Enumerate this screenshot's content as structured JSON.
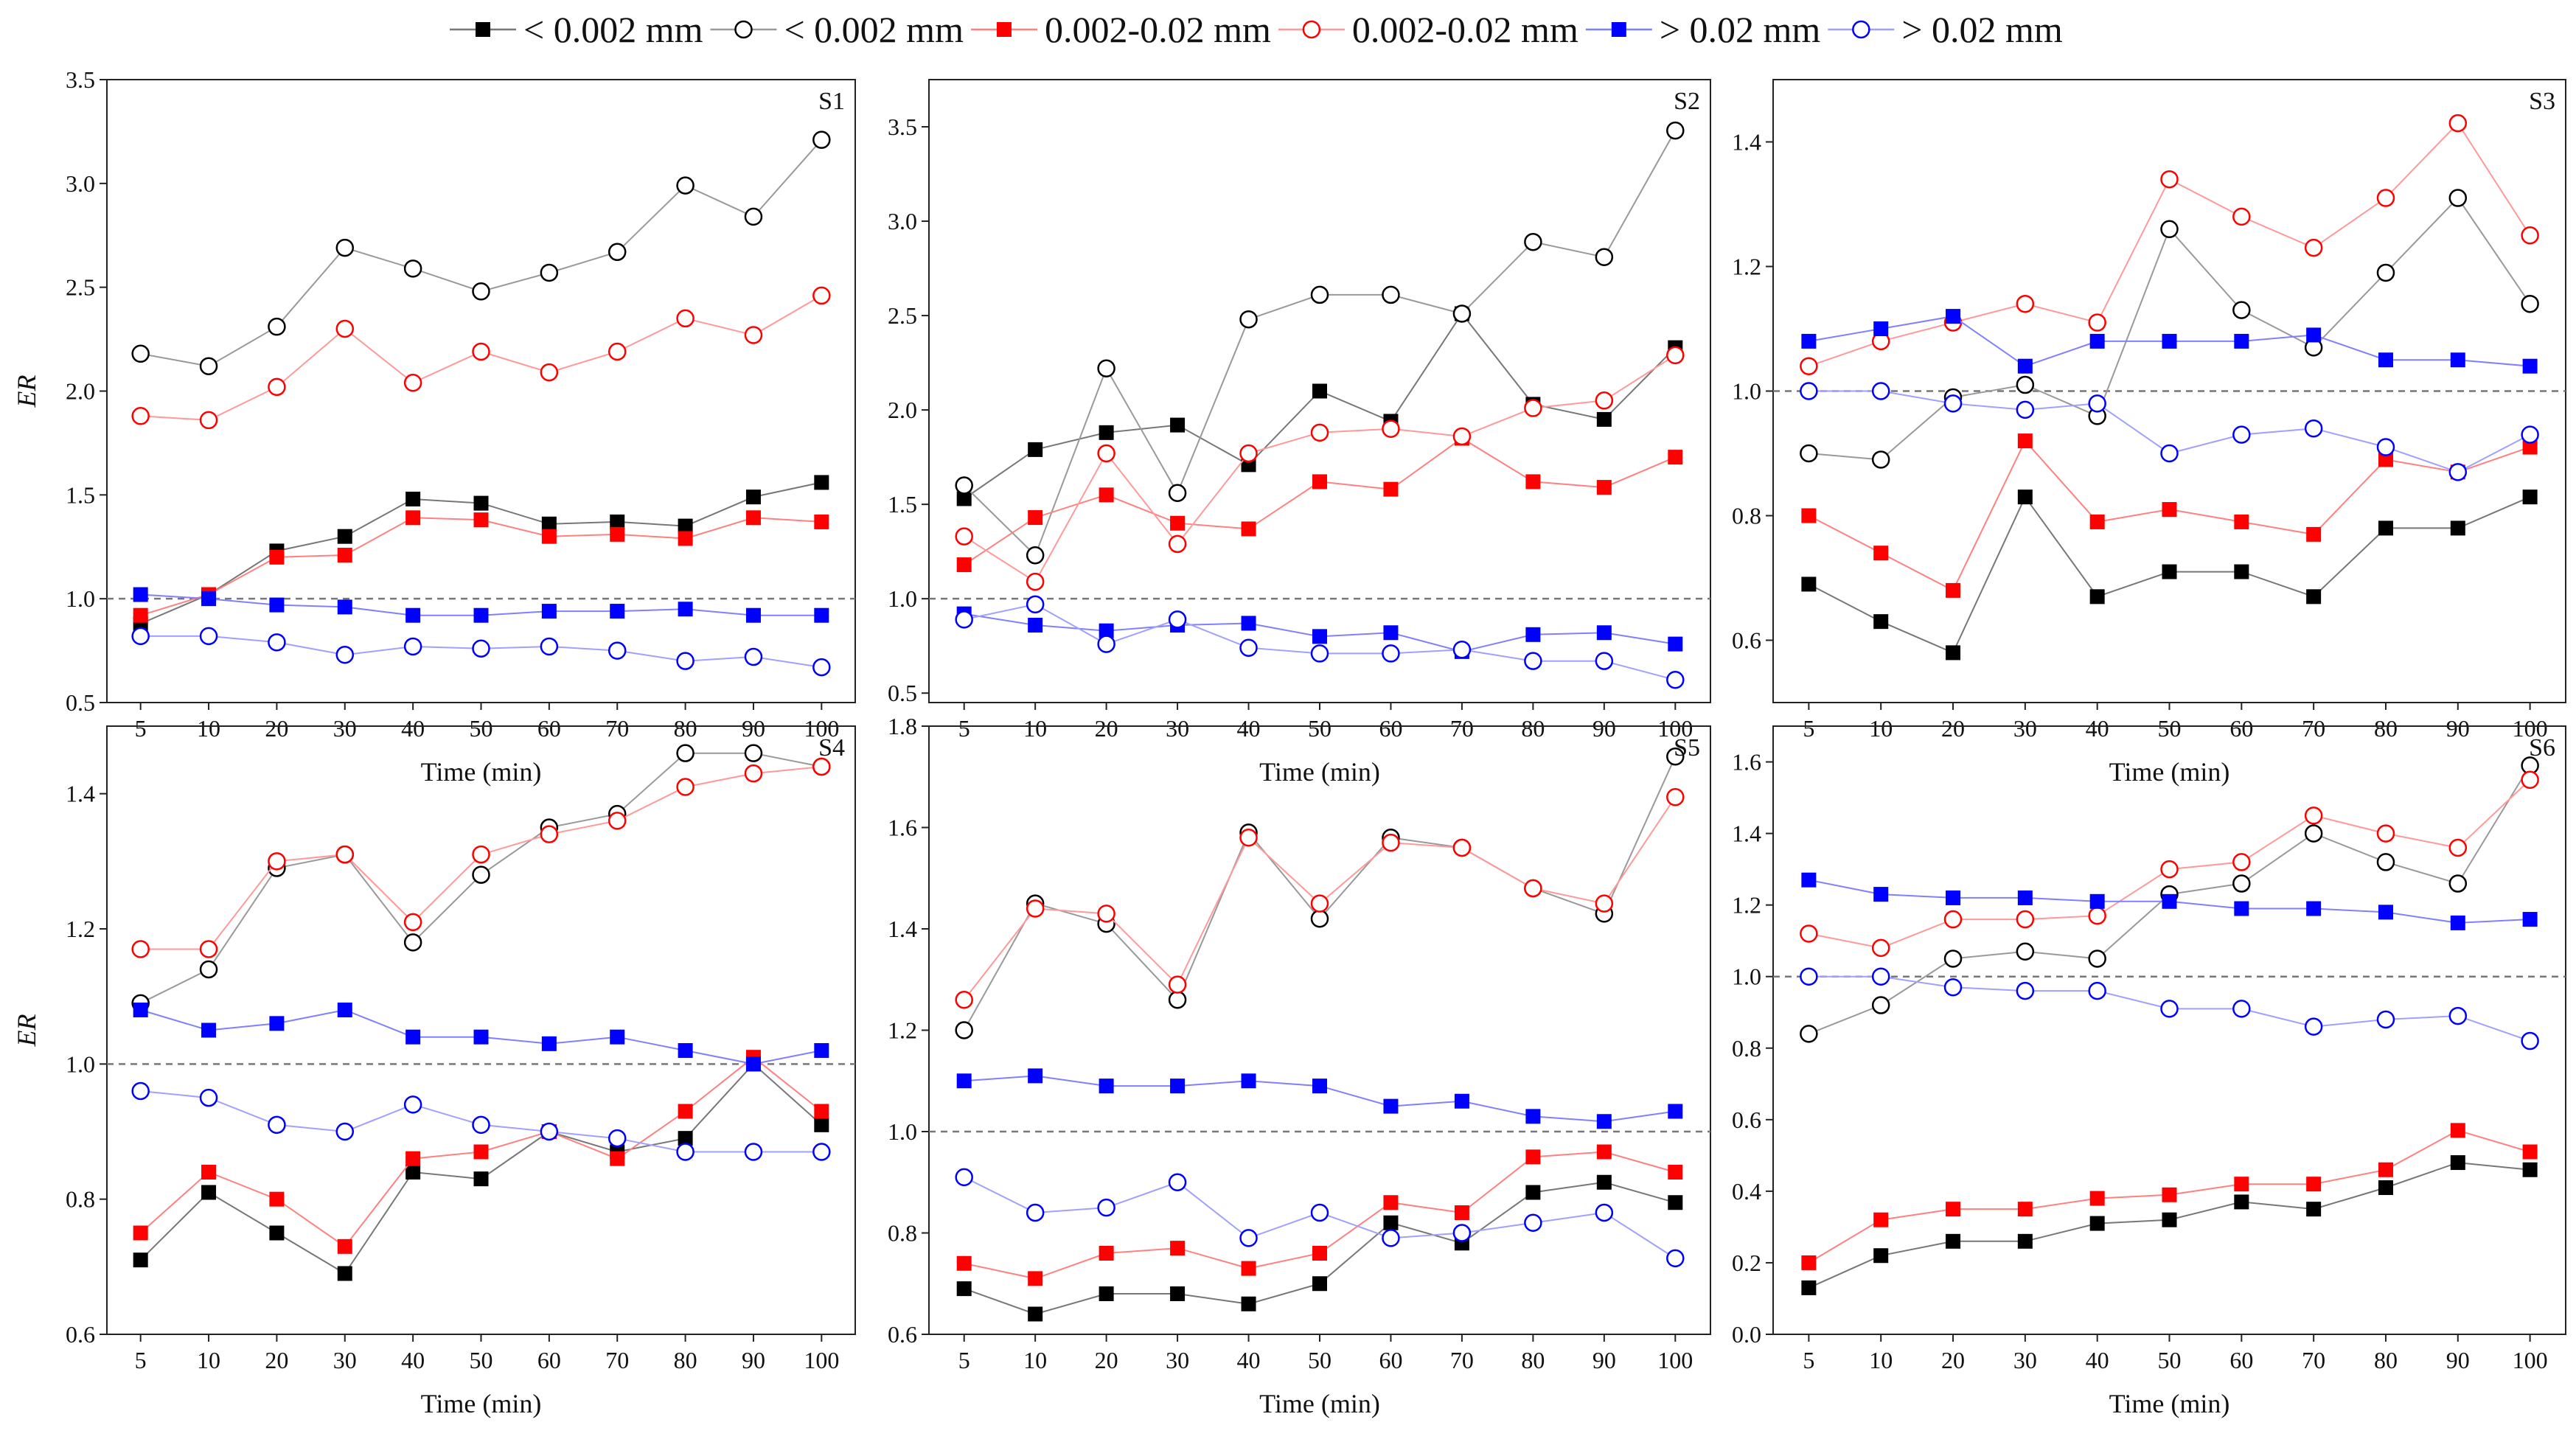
{
  "chart_data": {
    "type": "line",
    "x_categories": [
      "5",
      "10",
      "20",
      "30",
      "40",
      "50",
      "60",
      "70",
      "80",
      "90",
      "100"
    ],
    "xlabel": "Time (min)",
    "ylabel": "ER",
    "legend": {
      "placement": "top",
      "entries": [
        {
          "label": "< 0.002 mm",
          "marker": "square",
          "filled": true,
          "color": "#000000"
        },
        {
          "label": "< 0.002 mm",
          "marker": "circle",
          "filled": false,
          "color": "#000000"
        },
        {
          "label": "0.002-0.02 mm",
          "marker": "square",
          "filled": true,
          "color": "#ff0000"
        },
        {
          "label": "0.002-0.02 mm",
          "marker": "circle",
          "filled": false,
          "color": "#ff0000"
        },
        {
          "label": "> 0.02 mm",
          "marker": "square",
          "filled": true,
          "color": "#0000ff"
        },
        {
          "label": "> 0.02 mm",
          "marker": "circle",
          "filled": false,
          "color": "#0000ff"
        }
      ]
    },
    "reference_line": 1.0,
    "panels": [
      {
        "label": "S1",
        "ylim": [
          0.5,
          3.5
        ],
        "yticks": [
          "0.5",
          "1.0",
          "1.5",
          "2.0",
          "2.5",
          "3.0",
          "3.5"
        ],
        "show_ylabel": true,
        "series": [
          [
            0.88,
            1.02,
            1.23,
            1.3,
            1.48,
            1.46,
            1.36,
            1.37,
            1.35,
            1.49,
            1.56
          ],
          [
            2.18,
            2.12,
            2.31,
            2.69,
            2.59,
            2.48,
            2.57,
            2.67,
            2.99,
            2.84,
            3.21
          ],
          [
            0.92,
            1.02,
            1.2,
            1.21,
            1.39,
            1.38,
            1.3,
            1.31,
            1.29,
            1.39,
            1.37
          ],
          [
            1.88,
            1.86,
            2.02,
            2.3,
            2.04,
            2.19,
            2.09,
            2.19,
            2.35,
            2.27,
            2.46
          ],
          [
            1.02,
            1.0,
            0.97,
            0.96,
            0.92,
            0.92,
            0.94,
            0.94,
            0.95,
            0.92,
            0.92
          ],
          [
            0.82,
            0.82,
            0.79,
            0.73,
            0.77,
            0.76,
            0.77,
            0.75,
            0.7,
            0.72,
            0.67
          ]
        ]
      },
      {
        "label": "S2",
        "ylim": [
          0.45,
          3.75
        ],
        "yticks": [
          "0.5",
          "1.0",
          "1.5",
          "2.0",
          "2.5",
          "3.0",
          "3.5"
        ],
        "show_ylabel": false,
        "series": [
          [
            1.53,
            1.79,
            1.88,
            1.92,
            1.71,
            2.1,
            1.94,
            2.51,
            2.03,
            1.95,
            2.33
          ],
          [
            1.6,
            1.23,
            2.22,
            1.56,
            2.48,
            2.61,
            2.61,
            2.51,
            2.89,
            2.81,
            3.48
          ],
          [
            1.18,
            1.43,
            1.55,
            1.4,
            1.37,
            1.62,
            1.58,
            1.85,
            1.62,
            1.59,
            1.75
          ],
          [
            1.33,
            1.09,
            1.77,
            1.29,
            1.77,
            1.88,
            1.9,
            1.86,
            2.01,
            2.05,
            2.29
          ],
          [
            0.92,
            0.86,
            0.83,
            0.86,
            0.87,
            0.8,
            0.82,
            0.72,
            0.81,
            0.82,
            0.76
          ],
          [
            0.89,
            0.97,
            0.76,
            0.89,
            0.74,
            0.71,
            0.71,
            0.73,
            0.67,
            0.67,
            0.57
          ]
        ]
      },
      {
        "label": "S3",
        "ylim": [
          0.5,
          1.5
        ],
        "yticks": [
          "0.6",
          "0.8",
          "1.0",
          "1.2",
          "1.4"
        ],
        "show_ylabel": false,
        "series": [
          [
            0.69,
            0.63,
            0.58,
            0.83,
            0.67,
            0.71,
            0.71,
            0.67,
            0.78,
            0.78,
            0.83
          ],
          [
            0.9,
            0.89,
            0.99,
            1.01,
            0.96,
            1.26,
            1.13,
            1.07,
            1.19,
            1.31,
            1.14
          ],
          [
            0.8,
            0.74,
            0.68,
            0.92,
            0.79,
            0.81,
            0.79,
            0.77,
            0.89,
            0.87,
            0.91
          ],
          [
            1.04,
            1.08,
            1.11,
            1.14,
            1.11,
            1.34,
            1.28,
            1.23,
            1.31,
            1.43,
            1.25
          ],
          [
            1.08,
            1.1,
            1.12,
            1.04,
            1.08,
            1.08,
            1.08,
            1.09,
            1.05,
            1.05,
            1.04
          ],
          [
            1.0,
            1.0,
            0.98,
            0.97,
            0.98,
            0.9,
            0.93,
            0.94,
            0.91,
            0.87,
            0.93
          ]
        ]
      },
      {
        "label": "S4",
        "ylim": [
          0.6,
          1.5
        ],
        "yticks": [
          "0.6",
          "0.8",
          "1.0",
          "1.2",
          "1.4"
        ],
        "show_ylabel": true,
        "series": [
          [
            0.71,
            0.81,
            0.75,
            0.69,
            0.84,
            0.83,
            0.9,
            0.87,
            0.89,
            1.0,
            0.91
          ],
          [
            1.09,
            1.14,
            1.29,
            1.31,
            1.18,
            1.28,
            1.35,
            1.37,
            1.46,
            1.46,
            1.44
          ],
          [
            0.75,
            0.84,
            0.8,
            0.73,
            0.86,
            0.87,
            0.9,
            0.86,
            0.93,
            1.01,
            0.93
          ],
          [
            1.17,
            1.17,
            1.3,
            1.31,
            1.21,
            1.31,
            1.34,
            1.36,
            1.41,
            1.43,
            1.44
          ],
          [
            1.08,
            1.05,
            1.06,
            1.08,
            1.04,
            1.04,
            1.03,
            1.04,
            1.02,
            1.0,
            1.02
          ],
          [
            0.96,
            0.95,
            0.91,
            0.9,
            0.94,
            0.91,
            0.9,
            0.89,
            0.87,
            0.87,
            0.87
          ]
        ]
      },
      {
        "label": "S5",
        "ylim": [
          0.6,
          1.8
        ],
        "yticks": [
          "0.6",
          "0.8",
          "1.0",
          "1.2",
          "1.4",
          "1.6",
          "1.8"
        ],
        "show_ylabel": false,
        "series": [
          [
            0.69,
            0.64,
            0.68,
            0.68,
            0.66,
            0.7,
            0.82,
            0.78,
            0.88,
            0.9,
            0.86
          ],
          [
            1.2,
            1.45,
            1.41,
            1.26,
            1.59,
            1.42,
            1.58,
            1.56,
            1.48,
            1.43,
            1.74
          ],
          [
            0.74,
            0.71,
            0.76,
            0.77,
            0.73,
            0.76,
            0.86,
            0.84,
            0.95,
            0.96,
            0.92
          ],
          [
            1.26,
            1.44,
            1.43,
            1.29,
            1.58,
            1.45,
            1.57,
            1.56,
            1.48,
            1.45,
            1.66
          ],
          [
            1.1,
            1.11,
            1.09,
            1.09,
            1.1,
            1.09,
            1.05,
            1.06,
            1.03,
            1.02,
            1.04
          ],
          [
            0.91,
            0.84,
            0.85,
            0.9,
            0.79,
            0.84,
            0.79,
            0.8,
            0.82,
            0.84,
            0.75
          ]
        ]
      },
      {
        "label": "S6",
        "ylim": [
          0.0,
          1.7
        ],
        "yticks": [
          "0.0",
          "0.2",
          "0.4",
          "0.6",
          "0.8",
          "1.0",
          "1.2",
          "1.4",
          "1.6"
        ],
        "show_ylabel": false,
        "series": [
          [
            0.13,
            0.22,
            0.26,
            0.26,
            0.31,
            0.32,
            0.37,
            0.35,
            0.41,
            0.48,
            0.46
          ],
          [
            0.84,
            0.92,
            1.05,
            1.07,
            1.05,
            1.23,
            1.26,
            1.4,
            1.32,
            1.26,
            1.59
          ],
          [
            0.2,
            0.32,
            0.35,
            0.35,
            0.38,
            0.39,
            0.42,
            0.42,
            0.46,
            0.57,
            0.51
          ],
          [
            1.12,
            1.08,
            1.16,
            1.16,
            1.17,
            1.3,
            1.32,
            1.45,
            1.4,
            1.36,
            1.55
          ],
          [
            1.27,
            1.23,
            1.22,
            1.22,
            1.21,
            1.21,
            1.19,
            1.19,
            1.18,
            1.15,
            1.16
          ],
          [
            1.0,
            1.0,
            0.97,
            0.96,
            0.96,
            0.91,
            0.91,
            0.86,
            0.88,
            0.89,
            0.82
          ]
        ]
      }
    ]
  }
}
